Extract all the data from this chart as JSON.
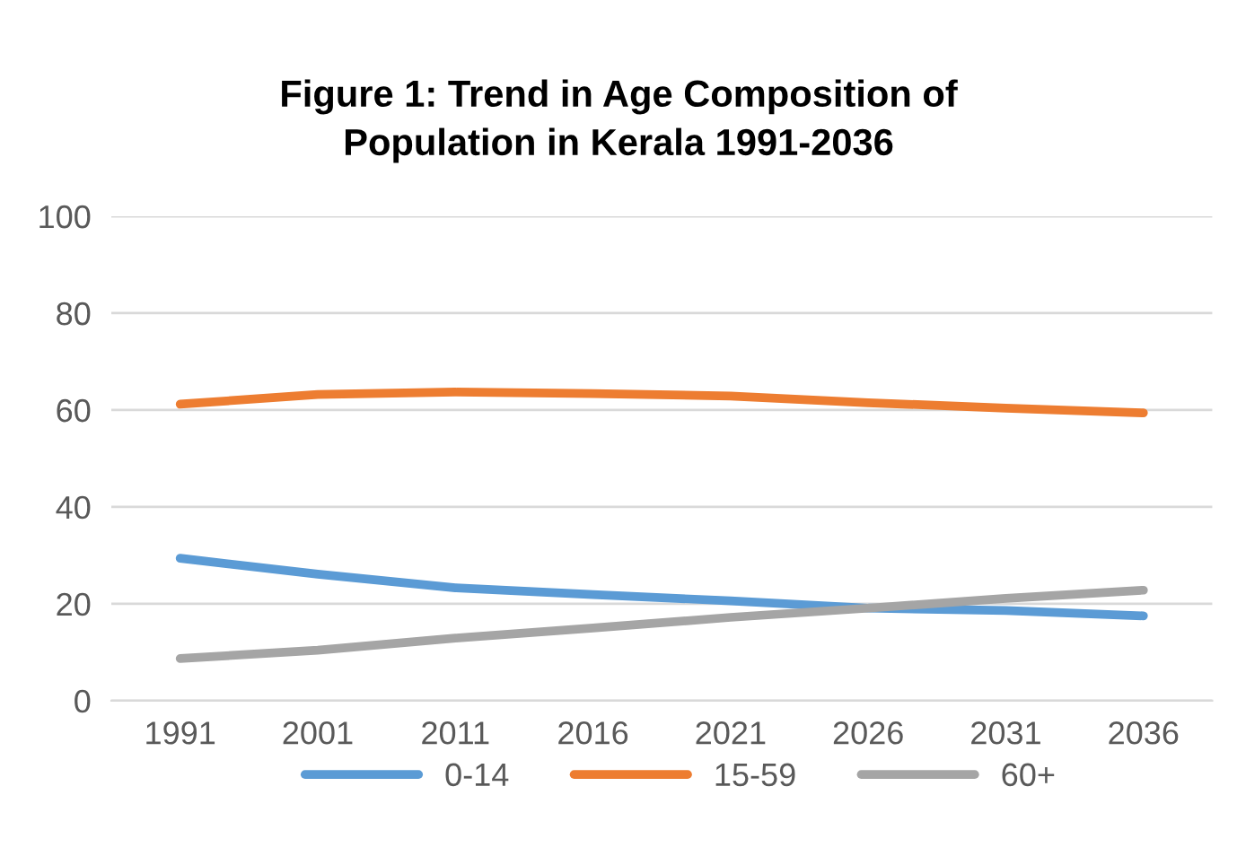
{
  "chart_data": {
    "type": "line",
    "title": "Figure 1: Trend in Age Composition of\nPopulation in Kerala 1991-2036",
    "categories": [
      "1991",
      "2001",
      "2011",
      "2016",
      "2021",
      "2026",
      "2031",
      "2036"
    ],
    "series": [
      {
        "name": "0-14",
        "color": "#5b9bd5",
        "values": [
          29.4,
          26.1,
          23.3,
          21.9,
          20.6,
          19.1,
          18.6,
          17.5
        ]
      },
      {
        "name": "15-59",
        "color": "#ed7d31",
        "values": [
          61.2,
          63.2,
          63.7,
          63.4,
          62.9,
          61.5,
          60.4,
          59.4
        ]
      },
      {
        "name": "60+",
        "color": "#a5a5a5",
        "values": [
          8.7,
          10.4,
          12.9,
          15.0,
          17.2,
          19.1,
          21.1,
          22.8
        ]
      }
    ],
    "ylim": [
      0,
      100
    ],
    "yticks": [
      0,
      20,
      40,
      60,
      80,
      100
    ],
    "grid": "y",
    "legend": "bottom",
    "marker": "none",
    "line_style": "solid"
  }
}
